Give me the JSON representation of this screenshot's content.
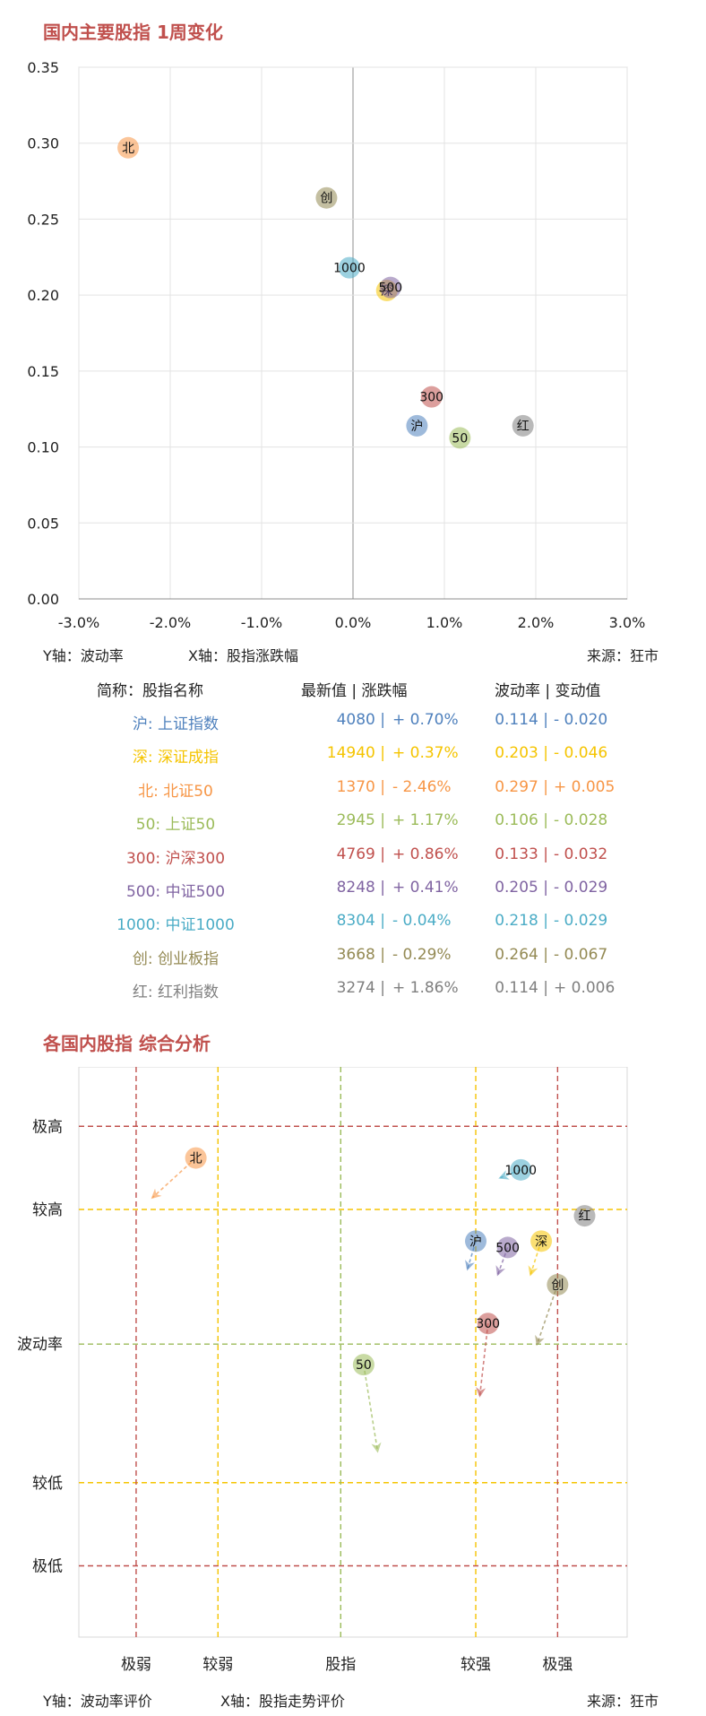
{
  "section1": {
    "title": "国内主要股指 1周变化"
  },
  "chart1": {
    "y_caption": "Y轴：波动率",
    "x_caption": "X轴：股指涨跌幅",
    "source": "来源：狂市",
    "x_ticks": [
      "-3.0%",
      "-2.0%",
      "-1.0%",
      "0.0%",
      "1.0%",
      "2.0%",
      "3.0%"
    ],
    "y_ticks": [
      "0.00",
      "0.05",
      "0.10",
      "0.15",
      "0.20",
      "0.25",
      "0.30",
      "0.35"
    ]
  },
  "table": {
    "headers": [
      "简称：股指名称",
      "最新值 | 涨跌幅",
      "波动率 | 变动值"
    ],
    "rows": [
      {
        "name": "沪: 上证指数",
        "value": "4080",
        "change": "+ 0.70%",
        "vol": "0.114",
        "vol_change": "- 0.020",
        "color": "#4f81bd"
      },
      {
        "name": "深: 深证成指",
        "value": "14940",
        "change": "+ 0.37%",
        "vol": "0.203",
        "vol_change": "- 0.046",
        "color": "#f5c400"
      },
      {
        "name": "北: 北证50",
        "value": "1370",
        "change": "- 2.46%",
        "vol": "0.297",
        "vol_change": "+ 0.005",
        "color": "#f79646"
      },
      {
        "name": "50: 上证50",
        "value": "2945",
        "change": "+ 1.17%",
        "vol": "0.106",
        "vol_change": "- 0.028",
        "color": "#9bbb59"
      },
      {
        "name": "300: 沪深300",
        "value": "4769",
        "change": "+ 0.86%",
        "vol": "0.133",
        "vol_change": "- 0.032",
        "color": "#c0504d"
      },
      {
        "name": "500: 中证500",
        "value": "8248",
        "change": "+ 0.41%",
        "vol": "0.205",
        "vol_change": "- 0.029",
        "color": "#8064a2"
      },
      {
        "name": "1000: 中证1000",
        "value": "8304",
        "change": "- 0.04%",
        "vol": "0.218",
        "vol_change": "- 0.029",
        "color": "#4bacc6"
      },
      {
        "name": "创: 创业板指",
        "value": "3668",
        "change": "- 0.29%",
        "vol": "0.264",
        "vol_change": "- 0.067",
        "color": "#948a54"
      },
      {
        "name": "红: 红利指数",
        "value": "3274",
        "change": "+ 1.86%",
        "vol": "0.114",
        "vol_change": "+ 0.006",
        "color": "#7f7f7f"
      }
    ]
  },
  "section2": {
    "title": "各国内股指 综合分析"
  },
  "chart2": {
    "y_caption": "Y轴：波动率评价",
    "x_caption": "X轴：股指走势评价",
    "source": "来源：狂市",
    "y_levels": [
      "极高",
      "较高",
      "波动率",
      "较低",
      "极低"
    ],
    "x_levels": [
      "极弱",
      "较弱",
      "股指",
      "较强",
      "极强"
    ]
  },
  "chart_data": [
    {
      "type": "scatter",
      "title": "国内主要股指 1周变化",
      "xlabel": "X轴：股指涨跌幅",
      "ylabel": "Y轴：波动率",
      "xlim": [
        -3.0,
        3.0
      ],
      "ylim": [
        0.0,
        0.35
      ],
      "x_unit": "%",
      "grid": true,
      "points": [
        {
          "label": "沪",
          "x": 0.7,
          "y": 0.114,
          "color": "#4f81bd"
        },
        {
          "label": "深",
          "x": 0.37,
          "y": 0.203,
          "color": "#f5c400"
        },
        {
          "label": "北",
          "x": -2.46,
          "y": 0.297,
          "color": "#f79646"
        },
        {
          "label": "50",
          "x": 1.17,
          "y": 0.106,
          "color": "#9bbb59"
        },
        {
          "label": "300",
          "x": 0.86,
          "y": 0.133,
          "color": "#c0504d"
        },
        {
          "label": "500",
          "x": 0.41,
          "y": 0.205,
          "color": "#8064a2"
        },
        {
          "label": "1000",
          "x": -0.04,
          "y": 0.218,
          "color": "#4bacc6"
        },
        {
          "label": "创",
          "x": -0.29,
          "y": 0.264,
          "color": "#948a54"
        },
        {
          "label": "红",
          "x": 1.86,
          "y": 0.114,
          "color": "#7f7f7f"
        }
      ]
    },
    {
      "type": "scatter",
      "title": "各国内股指 综合分析",
      "xlabel": "X轴：股指走势评价",
      "ylabel": "Y轴：波动率评价",
      "xlim": [
        -3.2,
        3.5
      ],
      "ylim": [
        -3.7,
        3.5
      ],
      "x_levels": {
        "极弱": -2.5,
        "较弱": -1.5,
        "股指": 0,
        "较强": 1.65,
        "极强": 2.65
      },
      "y_levels": {
        "极高": 2.75,
        "较高": 1.7,
        "波动率": 0,
        "较低": -1.75,
        "极低": -2.8
      },
      "grid": false,
      "points": [
        {
          "label": "北",
          "x": -1.77,
          "y": 2.35,
          "color": "#f79646",
          "arrow_to": [
            -2.3,
            1.85
          ]
        },
        {
          "label": "1000",
          "x": 2.2,
          "y": 2.2,
          "color": "#4bacc6",
          "arrow_to": [
            1.95,
            2.1
          ]
        },
        {
          "label": "红",
          "x": 2.98,
          "y": 1.62,
          "color": "#7f7f7f"
        },
        {
          "label": "沪",
          "x": 1.65,
          "y": 1.3,
          "color": "#4f81bd",
          "arrow_to": [
            1.55,
            0.95
          ]
        },
        {
          "label": "500",
          "x": 2.04,
          "y": 1.22,
          "color": "#8064a2",
          "arrow_to": [
            1.92,
            0.88
          ]
        },
        {
          "label": "深",
          "x": 2.45,
          "y": 1.3,
          "color": "#f5c400",
          "arrow_to": [
            2.32,
            0.88
          ]
        },
        {
          "label": "创",
          "x": 2.65,
          "y": 0.75,
          "color": "#948a54",
          "arrow_to": [
            2.4,
            0.0
          ]
        },
        {
          "label": "300",
          "x": 1.8,
          "y": 0.26,
          "color": "#c0504d",
          "arrow_to": [
            1.7,
            -0.65
          ]
        },
        {
          "label": "50",
          "x": 0.28,
          "y": -0.26,
          "color": "#9bbb59",
          "arrow_to": [
            0.45,
            -1.35
          ]
        }
      ]
    }
  ]
}
